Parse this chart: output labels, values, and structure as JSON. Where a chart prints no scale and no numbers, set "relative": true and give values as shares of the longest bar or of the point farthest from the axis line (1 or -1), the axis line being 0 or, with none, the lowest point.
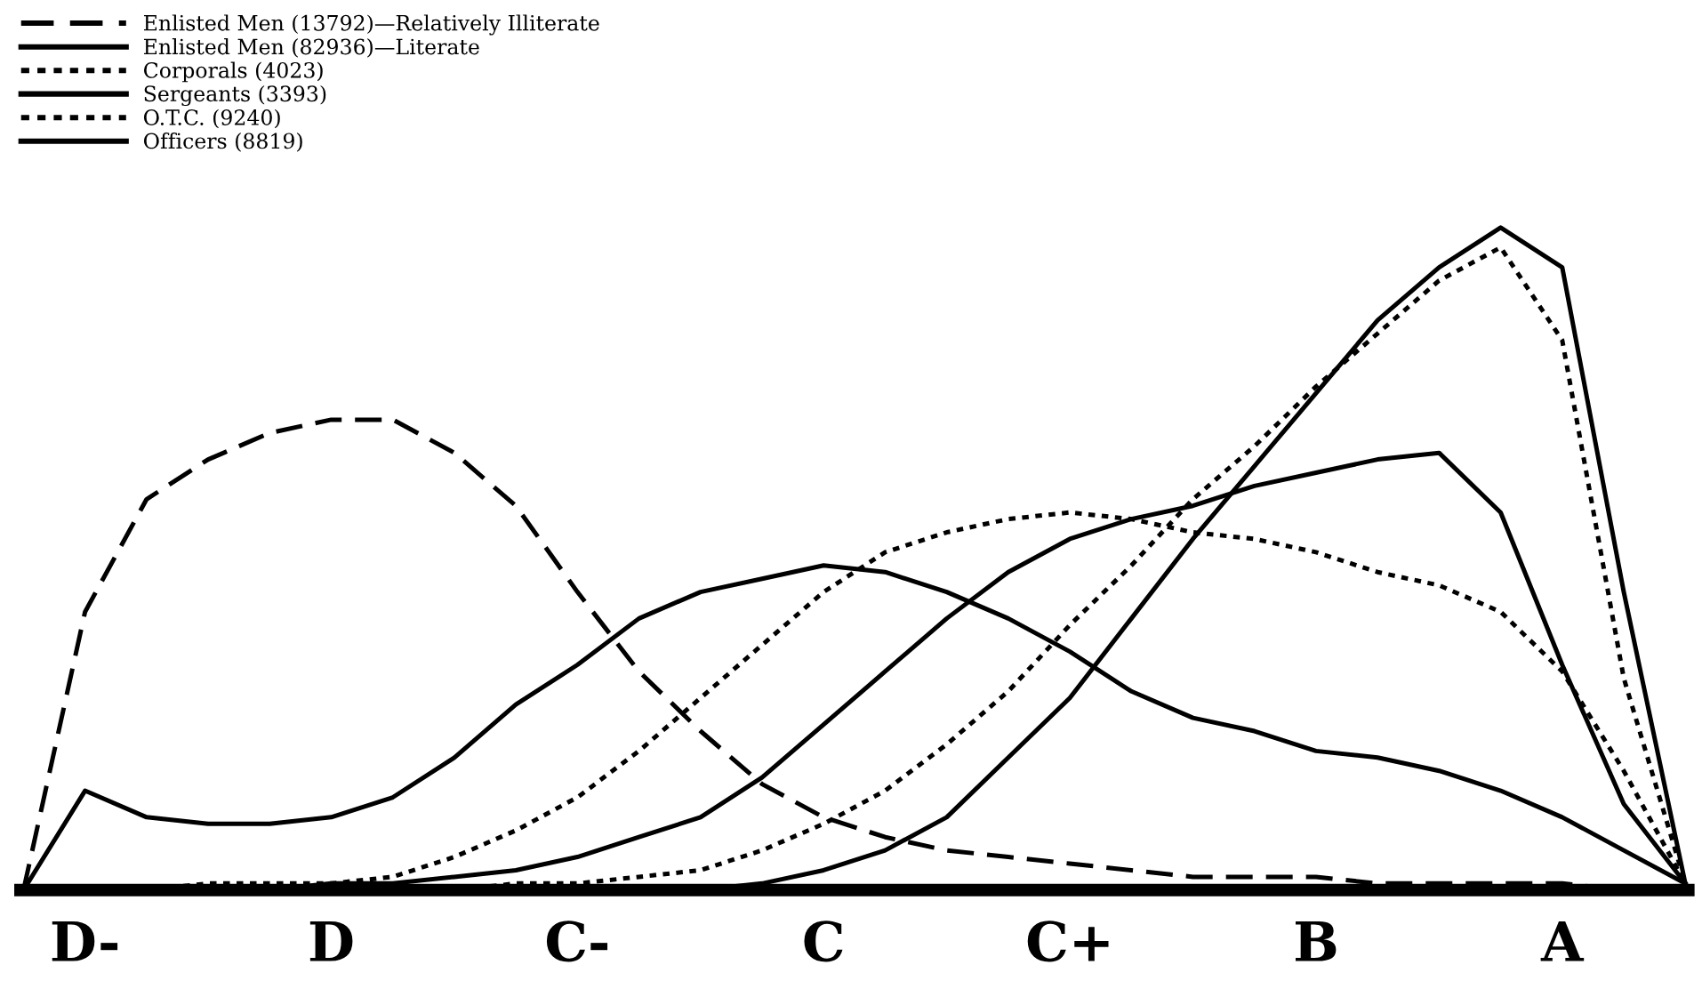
{
  "chart_data": {
    "type": "line",
    "relative": true,
    "legend": "top left",
    "grid": false,
    "marker": "none",
    "categories": [
      null,
      "D-",
      null,
      null,
      null,
      "D",
      null,
      null,
      null,
      "C-",
      null,
      null,
      null,
      "C",
      null,
      null,
      null,
      "C+",
      null,
      null,
      null,
      "B",
      null,
      null,
      null,
      "A",
      null,
      null
    ],
    "series": [
      {
        "name": "Enlisted Men (13792)—Relatively Illiterate",
        "color": "#000000",
        "line_style": "dashed",
        "values": [
          0,
          0.42,
          0.59,
          0.65,
          0.69,
          0.71,
          0.71,
          0.66,
          0.58,
          0.45,
          0.33,
          0.24,
          0.16,
          0.11,
          0.08,
          0.06,
          0.05,
          0.04,
          0.03,
          0.02,
          0.02,
          0.02,
          0.01,
          0.01,
          0.01,
          0.01,
          0,
          0
        ]
      },
      {
        "name": "Enlisted Men (82936)—Literate",
        "color": "#000000",
        "line_style": "solid",
        "values": [
          0,
          0.15,
          0.11,
          0.1,
          0.1,
          0.11,
          0.14,
          0.2,
          0.28,
          0.34,
          0.41,
          0.45,
          0.47,
          0.49,
          0.48,
          0.45,
          0.41,
          0.36,
          0.3,
          0.26,
          0.24,
          0.21,
          0.2,
          0.18,
          0.15,
          0.11,
          0.06,
          0.01
        ]
      },
      {
        "name": "Corporals (4023)",
        "color": "#000000",
        "line_style": "dotted",
        "values": [
          0,
          0,
          0,
          0.01,
          0.01,
          0.01,
          0.02,
          0.05,
          0.09,
          0.14,
          0.21,
          0.29,
          0.37,
          0.45,
          0.51,
          0.54,
          0.56,
          0.57,
          0.56,
          0.54,
          0.53,
          0.51,
          0.48,
          0.46,
          0.42,
          0.33,
          0.18,
          0.01
        ]
      },
      {
        "name": "Sergeants (3393)",
        "color": "#000000",
        "line_style": "solid",
        "values": [
          0,
          0,
          0,
          0,
          0,
          0.01,
          0.01,
          0.02,
          0.03,
          0.05,
          0.08,
          0.11,
          0.17,
          0.25,
          0.33,
          0.41,
          0.48,
          0.53,
          0.56,
          0.58,
          0.61,
          0.63,
          0.65,
          0.66,
          0.57,
          0.34,
          0.13,
          0.01
        ]
      },
      {
        "name": "O.T.C. (9240)",
        "color": "#000000",
        "line_style": "dotted",
        "values": [
          0,
          0,
          0,
          0,
          0,
          0,
          0,
          0,
          0.01,
          0.01,
          0.02,
          0.03,
          0.06,
          0.1,
          0.15,
          0.22,
          0.3,
          0.4,
          0.49,
          0.59,
          0.67,
          0.76,
          0.84,
          0.92,
          0.97,
          0.83,
          0.32,
          0.01
        ]
      },
      {
        "name": "Officers (8819)",
        "color": "#000000",
        "line_style": "solid",
        "values": [
          0,
          0,
          0,
          0,
          0,
          0,
          0,
          0,
          0,
          0,
          0,
          0,
          0.01,
          0.03,
          0.06,
          0.11,
          0.2,
          0.29,
          0.41,
          0.53,
          0.64,
          0.75,
          0.86,
          0.94,
          1.0,
          0.94,
          0.45,
          0.01
        ]
      }
    ]
  }
}
